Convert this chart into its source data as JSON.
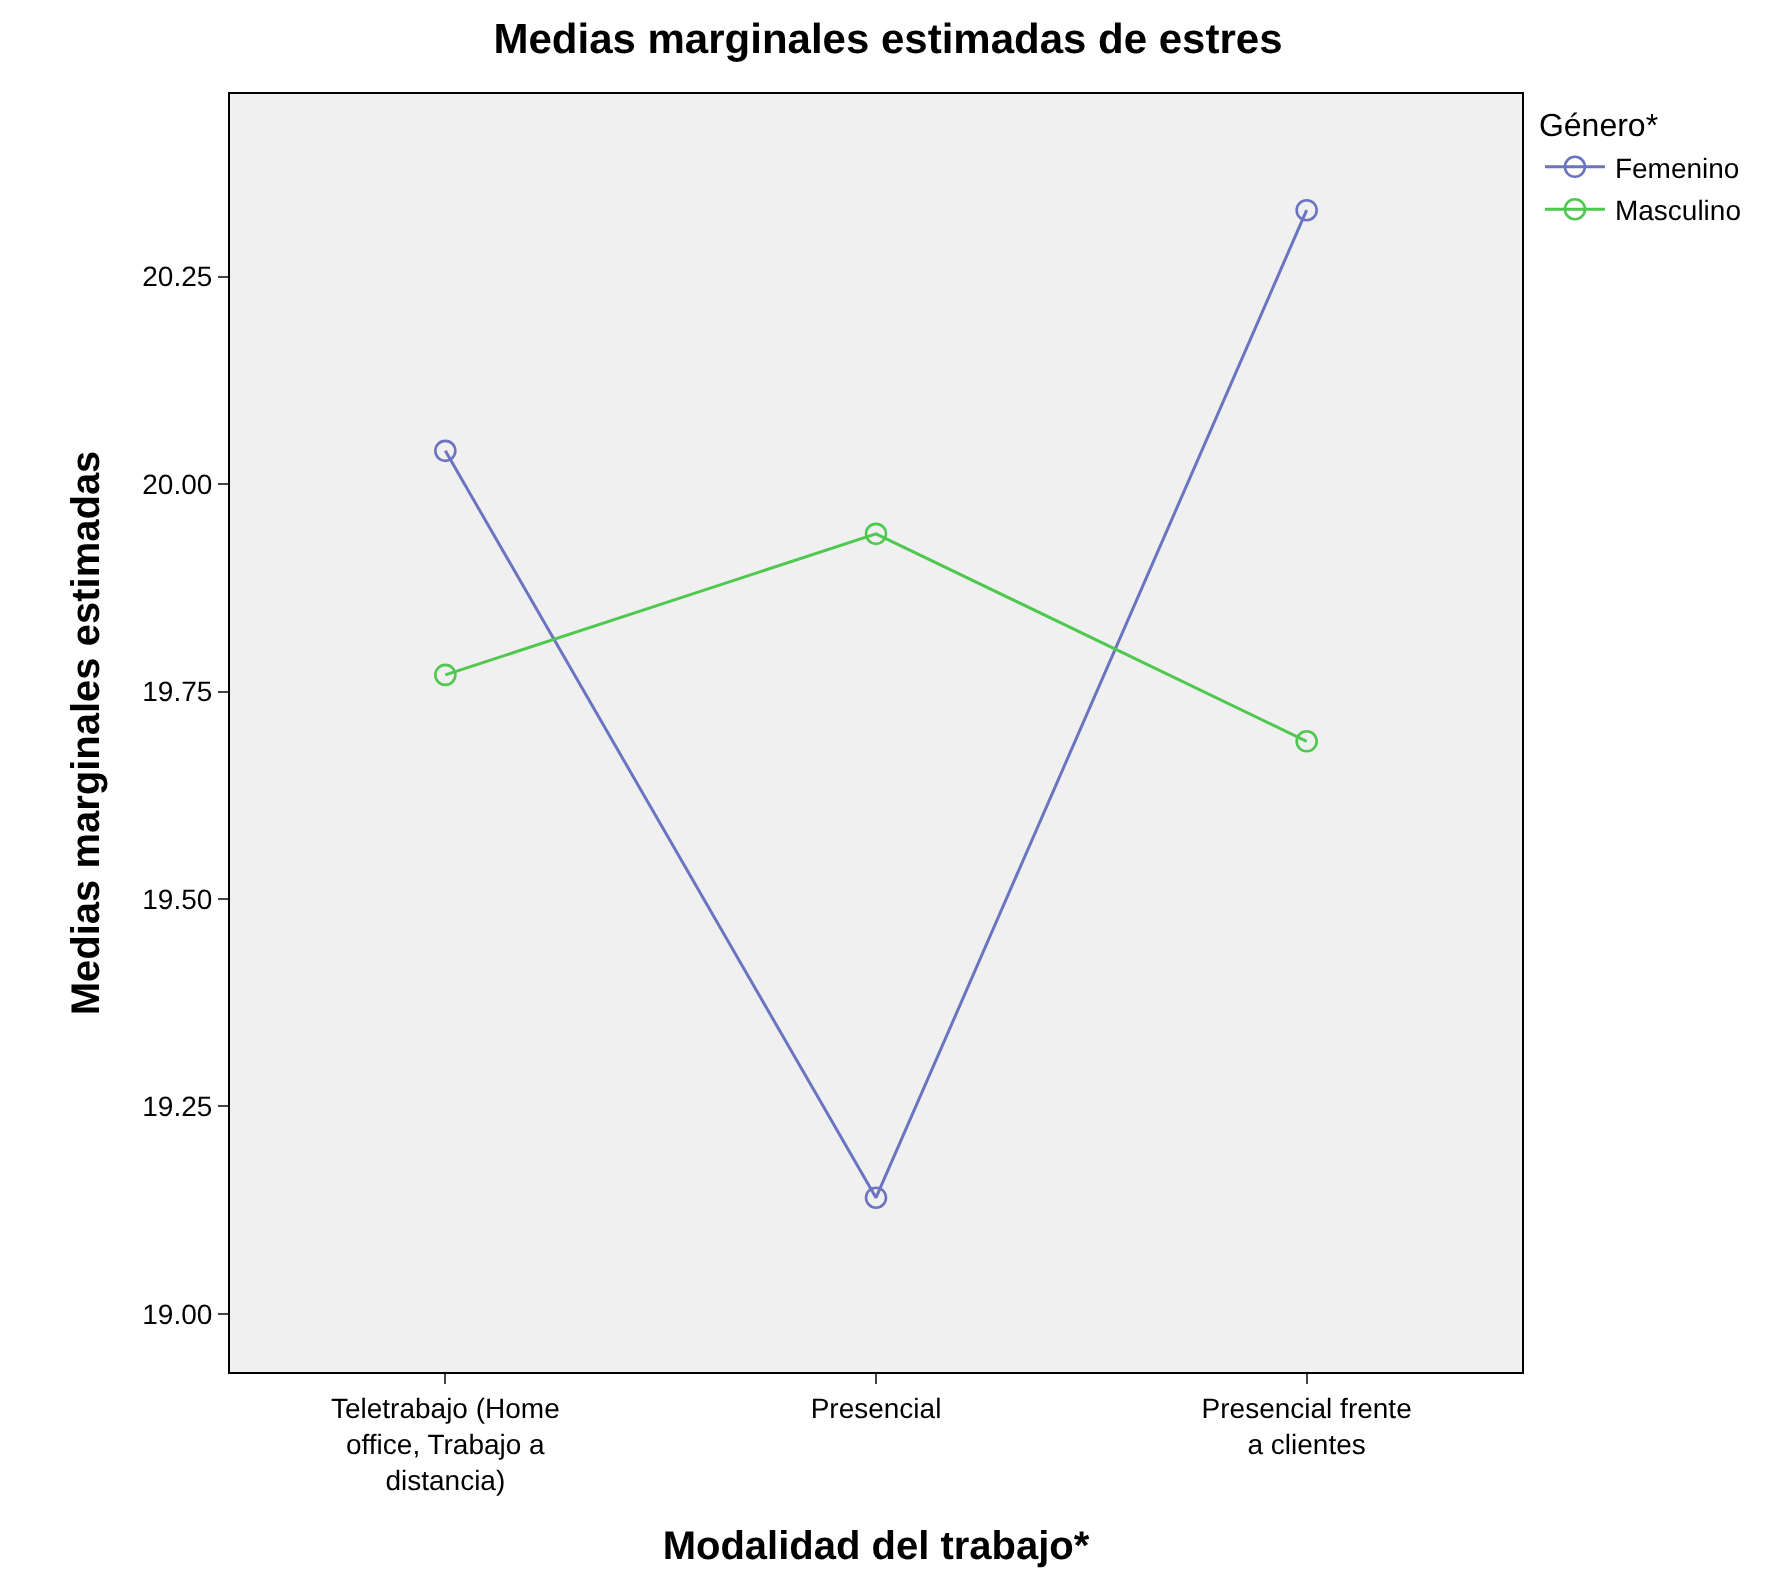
{
  "chart_data": {
    "type": "line",
    "title": "Medias marginales estimadas de estres",
    "xlabel": "Modalidad del trabajo*",
    "ylabel": "Medias marginales estimadas",
    "legend_title": "Género*",
    "categories": [
      "Teletrabajo (Home office, Trabajo a distancia)",
      "Presencial",
      "Presencial frente a clientes"
    ],
    "series": [
      {
        "name": "Femenino",
        "color": "#6a74c0",
        "values": [
          20.04,
          19.14,
          20.33
        ]
      },
      {
        "name": "Masculino",
        "color": "#4fc84f",
        "values": [
          19.77,
          19.94,
          19.69
        ]
      }
    ],
    "ylim": [
      18.93,
      20.47
    ],
    "yticks": [
      {
        "value": 19.0,
        "label": "19.00"
      },
      {
        "value": 19.25,
        "label": "19.25"
      },
      {
        "value": 19.5,
        "label": "19.50"
      },
      {
        "value": 19.75,
        "label": "19.75"
      },
      {
        "value": 20.0,
        "label": "20.00"
      },
      {
        "value": 20.25,
        "label": "20.25"
      }
    ],
    "marker": "circle",
    "line_style": "solid",
    "grid": false,
    "legend": "top right"
  }
}
